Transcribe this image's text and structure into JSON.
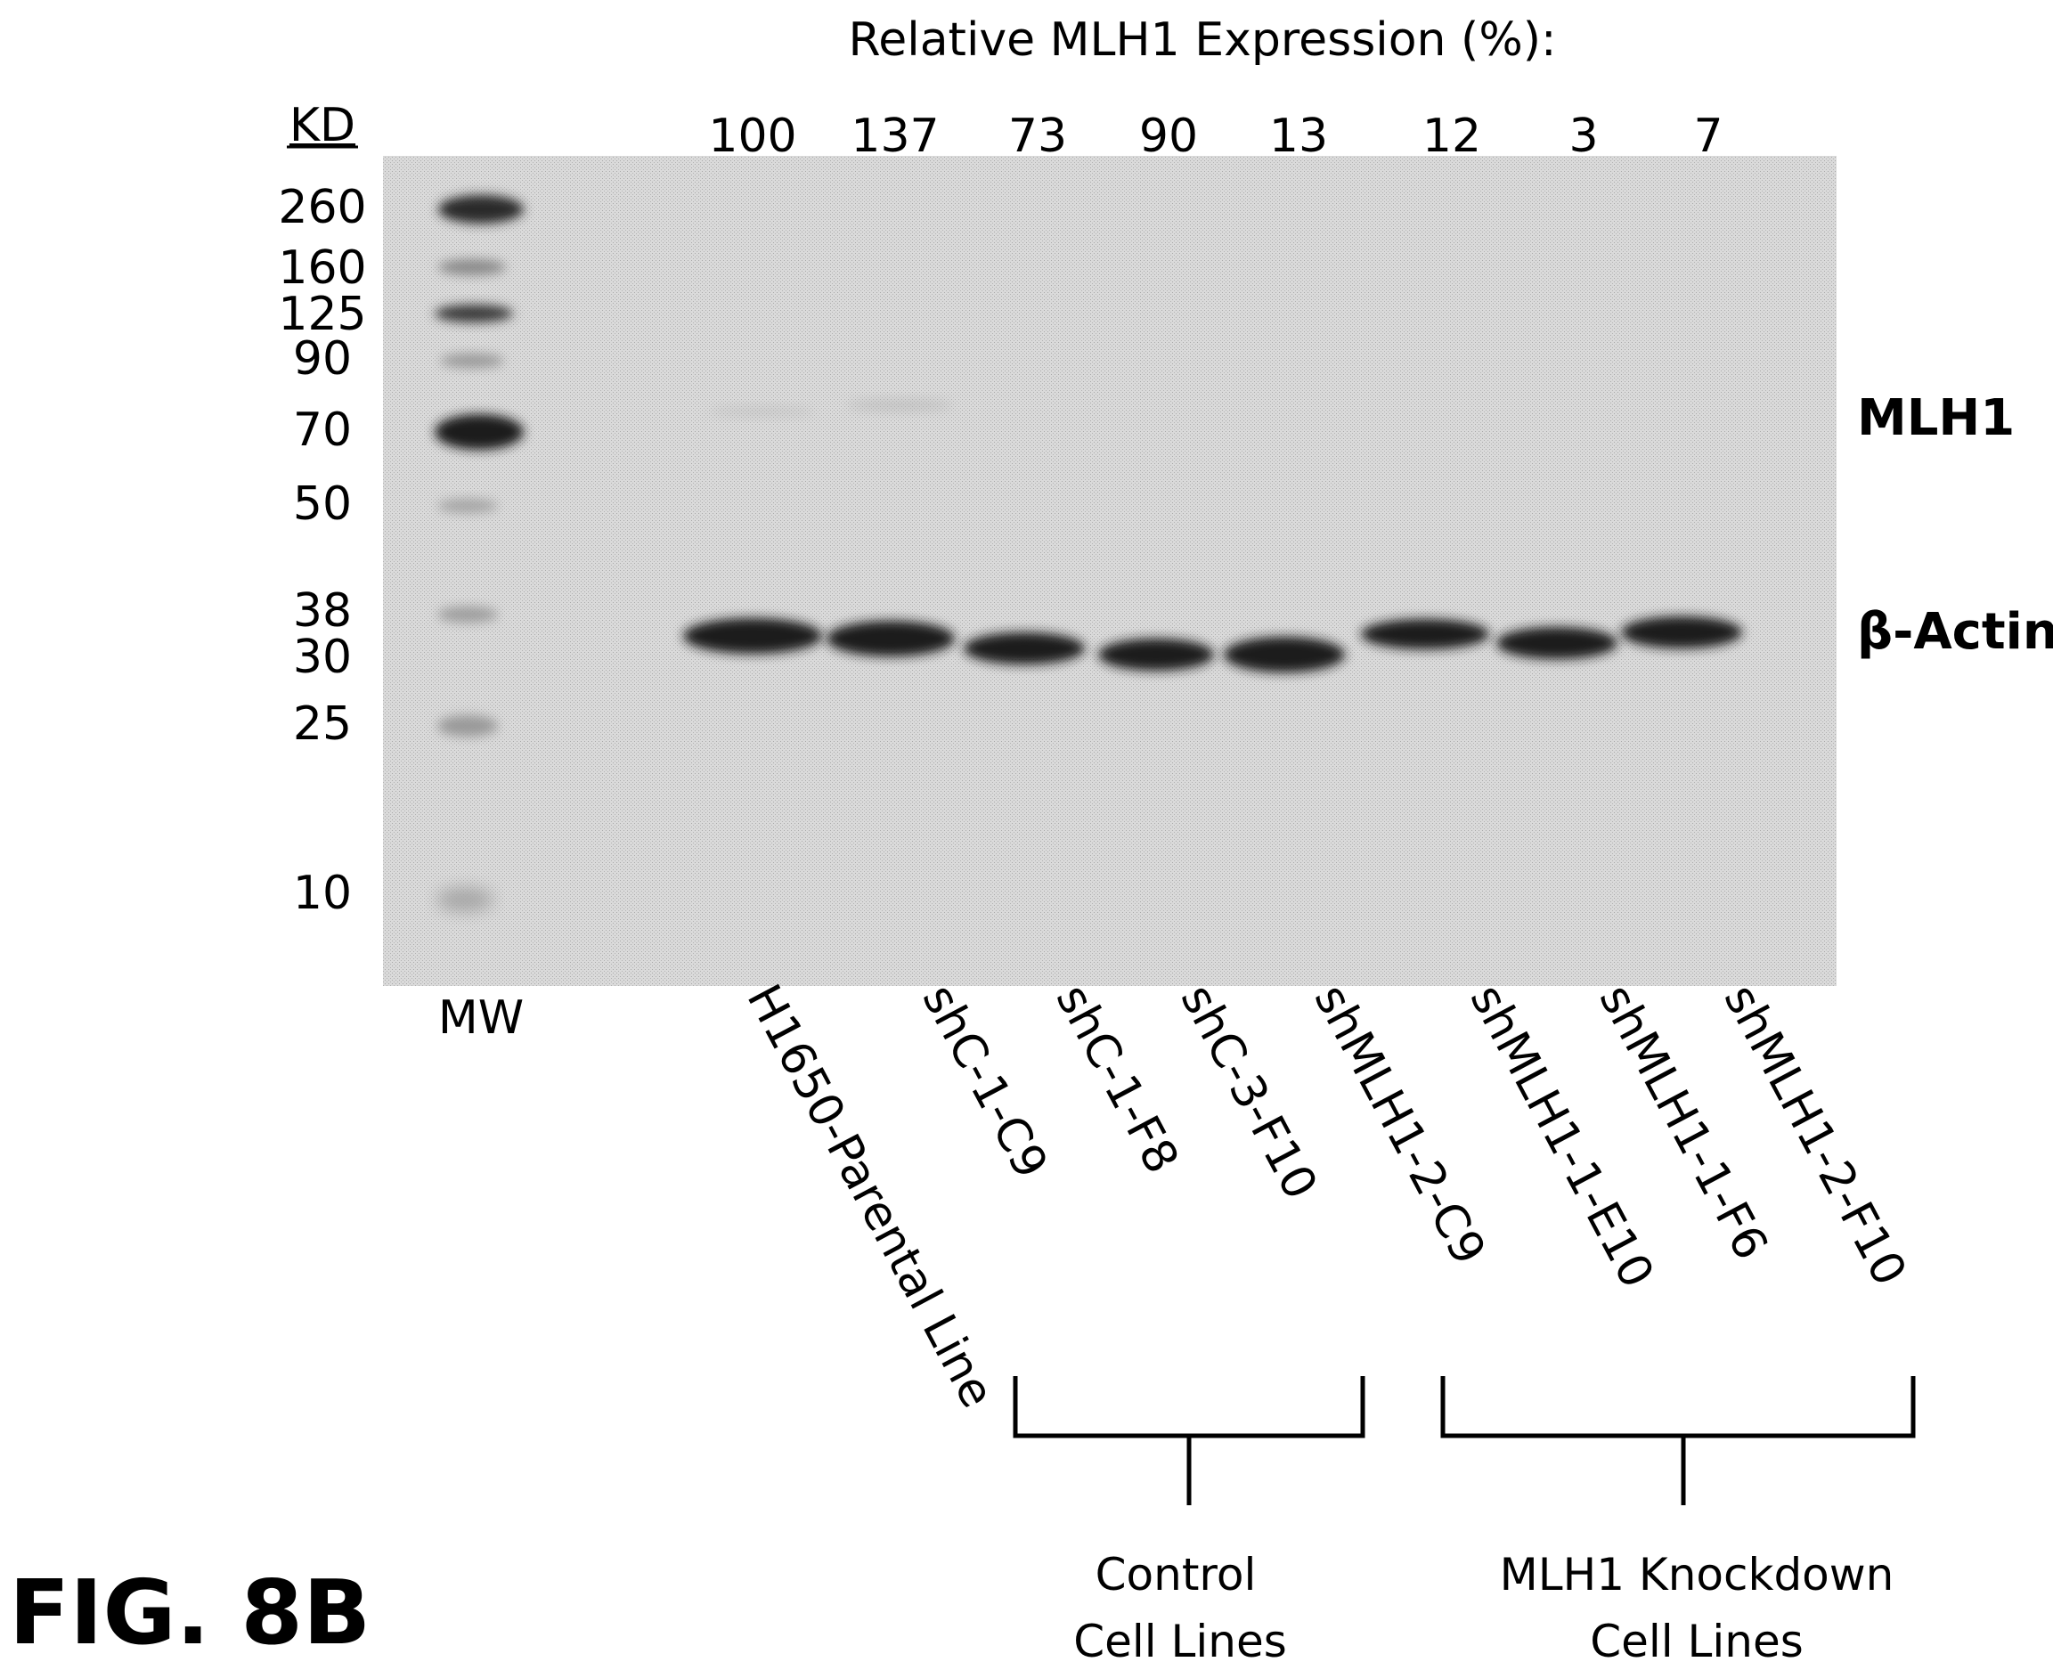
{
  "expression_title": "Relative MLH1 Expression (%):",
  "kd_label": "KD",
  "mw_ladder": [
    "260",
    "160",
    "125",
    "90",
    "70",
    "50",
    "38",
    "30",
    "25",
    "10"
  ],
  "mw_lane_label": "MW",
  "lanes": [
    {
      "name": "H1650-Parental Line",
      "expression": "100"
    },
    {
      "name": "shC-1-C9",
      "expression": "137"
    },
    {
      "name": "shC-1-F8",
      "expression": "73"
    },
    {
      "name": "shC-3-F10",
      "expression": "90"
    },
    {
      "name": "shMLH1-2-C9",
      "expression": "13"
    },
    {
      "name": "shMLH1-1-E10",
      "expression": "12"
    },
    {
      "name": "shMLH1-1-F6",
      "expression": "3"
    },
    {
      "name": "shMLH1-2-F10",
      "expression": "7"
    }
  ],
  "band_labels": {
    "mlh1": "MLH1",
    "actin": "β-Actin"
  },
  "groups": {
    "control": {
      "line1": "Control",
      "line2": "Cell Lines"
    },
    "knockdown": {
      "line1": "MLH1 Knockdown",
      "line2": "Cell Lines"
    }
  },
  "figure_label": "FIG. 8B",
  "colors": {
    "blot": "#cfcfcf",
    "band": "#1a1a1a",
    "ladder": "#3a3a3a",
    "ink": "#000000"
  }
}
